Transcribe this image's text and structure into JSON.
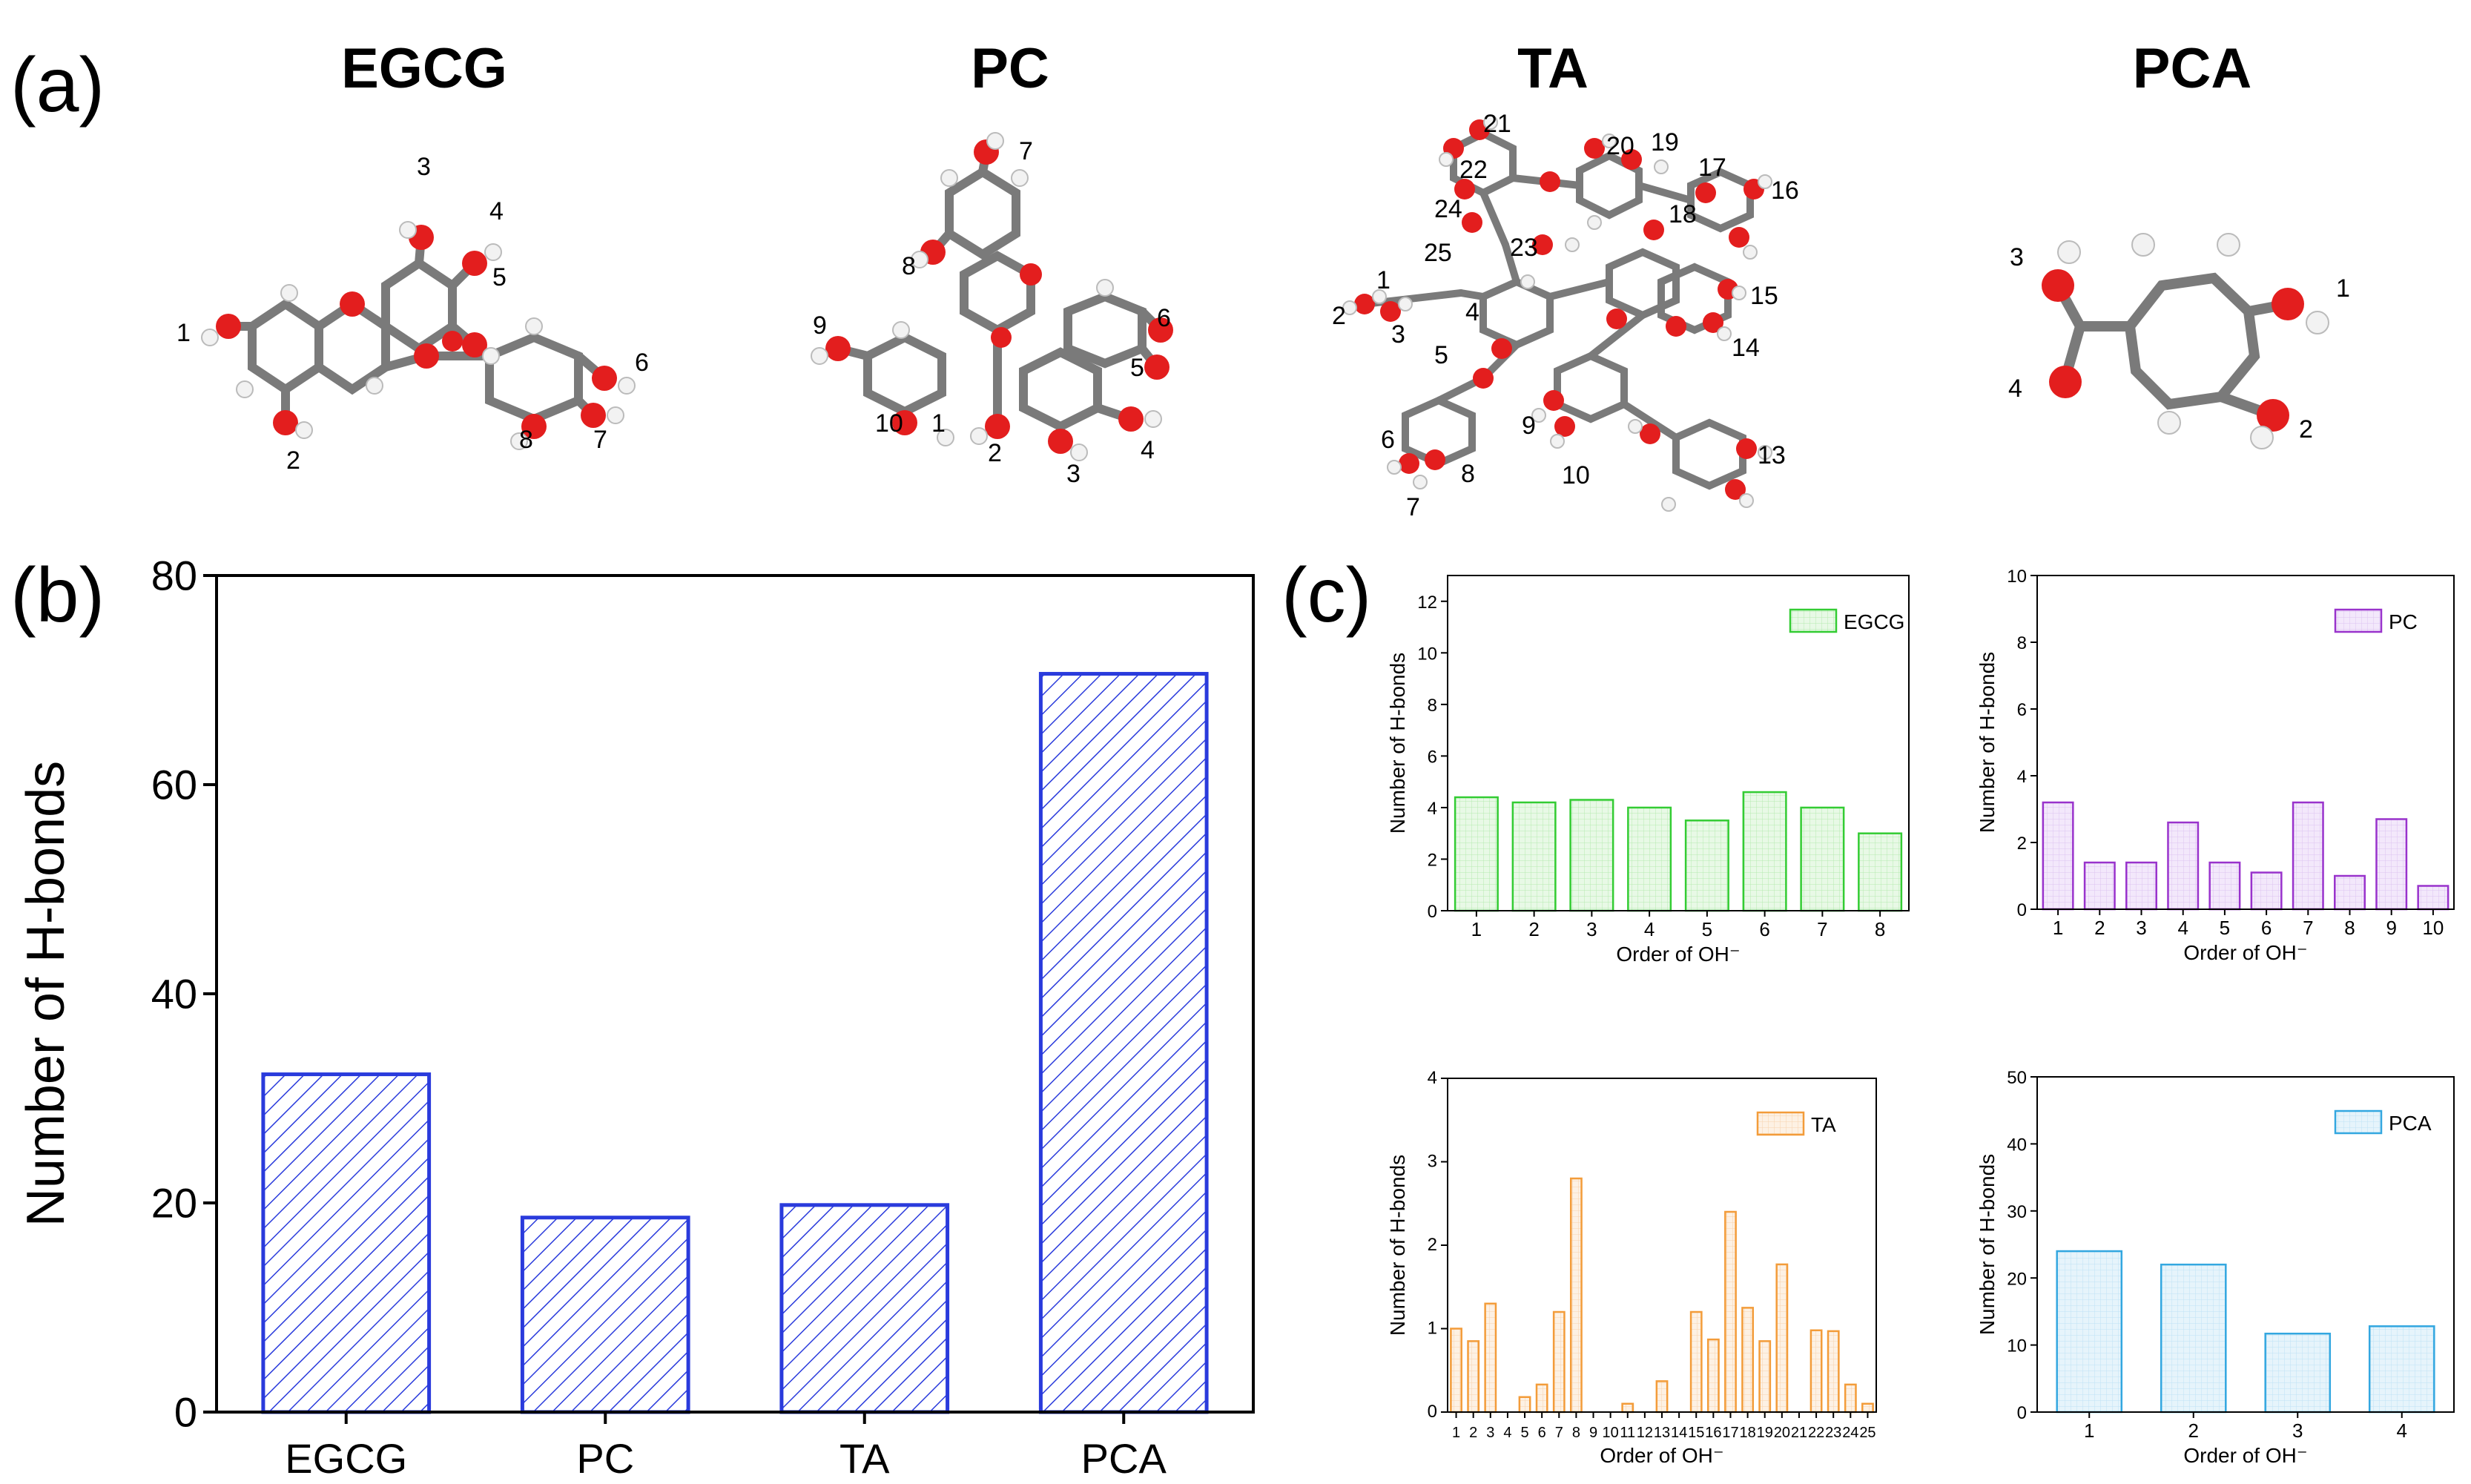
{
  "panels": {
    "a": {
      "label": "(a)",
      "molecules": [
        {
          "name": "EGCG",
          "oh_labels": [
            "1",
            "2",
            "3",
            "4",
            "5",
            "6",
            "7",
            "8"
          ]
        },
        {
          "name": "PC",
          "oh_labels": [
            "1",
            "2",
            "3",
            "4",
            "5",
            "6",
            "7",
            "8",
            "9",
            "10"
          ]
        },
        {
          "name": "TA",
          "oh_labels": [
            "1",
            "2",
            "3",
            "4",
            "5",
            "6",
            "7",
            "8",
            "9",
            "10",
            "13",
            "14",
            "15",
            "16",
            "17",
            "18",
            "19",
            "20",
            "21",
            "22",
            "23",
            "24",
            "25"
          ]
        },
        {
          "name": "PCA",
          "oh_labels": [
            "1",
            "2",
            "3",
            "4"
          ]
        }
      ]
    },
    "b": {
      "label": "(b)"
    },
    "c": {
      "label": "(c)"
    }
  },
  "colors": {
    "atom_C": "#7a7a7a",
    "atom_O": "#e31e1e",
    "atom_H": "#f2f2f2",
    "bar_b": "#2a3bdc",
    "EGCG": "#33cc33",
    "PC": "#9933cc",
    "TA": "#f39c3a",
    "PCA": "#33a7e0"
  },
  "chart_data": [
    {
      "id": "b",
      "type": "bar",
      "categories": [
        "EGCG",
        "PC",
        "TA",
        "PCA"
      ],
      "values": [
        32.3,
        18.6,
        19.8,
        70.6
      ],
      "ylabel": "Number of H-bonds",
      "xlabel": "",
      "ylim": [
        0,
        80
      ],
      "yticks": [
        "0",
        "20",
        "40",
        "60",
        "80"
      ],
      "hatch": "diagonal"
    },
    {
      "id": "c-egcg",
      "type": "bar",
      "legend": "EGCG",
      "categories": [
        "1",
        "2",
        "3",
        "4",
        "5",
        "6",
        "7",
        "8"
      ],
      "values": [
        4.4,
        4.2,
        4.3,
        4.0,
        3.5,
        4.6,
        4.0,
        3.0
      ],
      "ylabel": "Number of H-bonds",
      "xlabel": "Order of OH⁻",
      "ylim": [
        0,
        13
      ],
      "yticks": [
        "0",
        "2",
        "4",
        "6",
        "8",
        "10",
        "12"
      ]
    },
    {
      "id": "c-pc",
      "type": "bar",
      "legend": "PC",
      "categories": [
        "1",
        "2",
        "3",
        "4",
        "5",
        "6",
        "7",
        "8",
        "9",
        "10"
      ],
      "values": [
        3.2,
        1.4,
        1.4,
        2.6,
        1.4,
        1.1,
        3.2,
        1.0,
        2.7,
        0.7
      ],
      "ylabel": "Number of H-bonds",
      "xlabel": "Order of OH⁻",
      "ylim": [
        0,
        10
      ],
      "yticks": [
        "0",
        "2",
        "4",
        "6",
        "8",
        "10"
      ]
    },
    {
      "id": "c-ta",
      "type": "bar",
      "legend": "TA",
      "categories": [
        "1",
        "2",
        "3",
        "4",
        "5",
        "6",
        "7",
        "8",
        "9",
        "10",
        "11",
        "12",
        "13",
        "14",
        "15",
        "16",
        "17",
        "18",
        "19",
        "20",
        "21",
        "22",
        "23",
        "24",
        "25"
      ],
      "values": [
        1.0,
        0.85,
        1.3,
        0,
        0.18,
        0.33,
        1.2,
        2.8,
        0,
        0,
        0.1,
        0,
        0.37,
        0,
        1.2,
        0.87,
        2.4,
        1.25,
        0.85,
        1.77,
        0,
        0.98,
        0.97,
        0.33,
        0.1
      ],
      "ylabel": "Number of H-bonds",
      "xlabel": "Order of OH⁻",
      "ylim": [
        0,
        4
      ],
      "yticks": [
        "0",
        "1",
        "2",
        "3",
        "4"
      ]
    },
    {
      "id": "c-pca",
      "type": "bar",
      "legend": "PCA",
      "categories": [
        "1",
        "2",
        "3",
        "4"
      ],
      "values": [
        24.0,
        22.0,
        11.7,
        12.8
      ],
      "ylabel": "Number of H-bonds",
      "xlabel": "Order of OH⁻",
      "ylim": [
        0,
        50
      ],
      "yticks": [
        "0",
        "10",
        "20",
        "30",
        "40",
        "50"
      ]
    }
  ]
}
